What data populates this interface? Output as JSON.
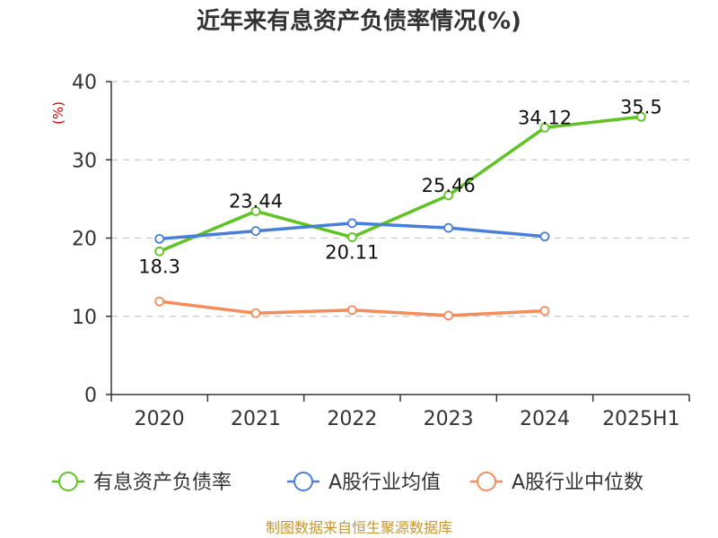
{
  "chart_data": {
    "type": "line",
    "title": "近年来有息资产负债率情况(%)",
    "ylabel": "(%)",
    "categories": [
      "2020",
      "2021",
      "2022",
      "2023",
      "2024",
      "2025H1"
    ],
    "yticks": [
      "0",
      "10",
      "20",
      "30",
      "40"
    ],
    "ylim": [
      0,
      40
    ],
    "grid": true,
    "legend_position": "bottom",
    "series": [
      {
        "name": "有息资产负债率",
        "color": "#5ec421",
        "values": [
          18.3,
          23.44,
          20.11,
          25.46,
          34.12,
          35.5
        ],
        "labels": [
          "18.3",
          "23.44",
          "20.11",
          "25.46",
          "34.12",
          "35.5"
        ]
      },
      {
        "name": "A股行业均值",
        "color": "#4a7fd8",
        "values": [
          19.9,
          20.9,
          21.9,
          21.3,
          20.2,
          null
        ],
        "labels": []
      },
      {
        "name": "A股行业中位数",
        "color": "#f58c5a",
        "values": [
          11.9,
          10.4,
          10.8,
          10.1,
          10.7,
          null
        ],
        "labels": []
      }
    ]
  },
  "footer": {
    "source": "制图数据来自恒生聚源数据库"
  }
}
